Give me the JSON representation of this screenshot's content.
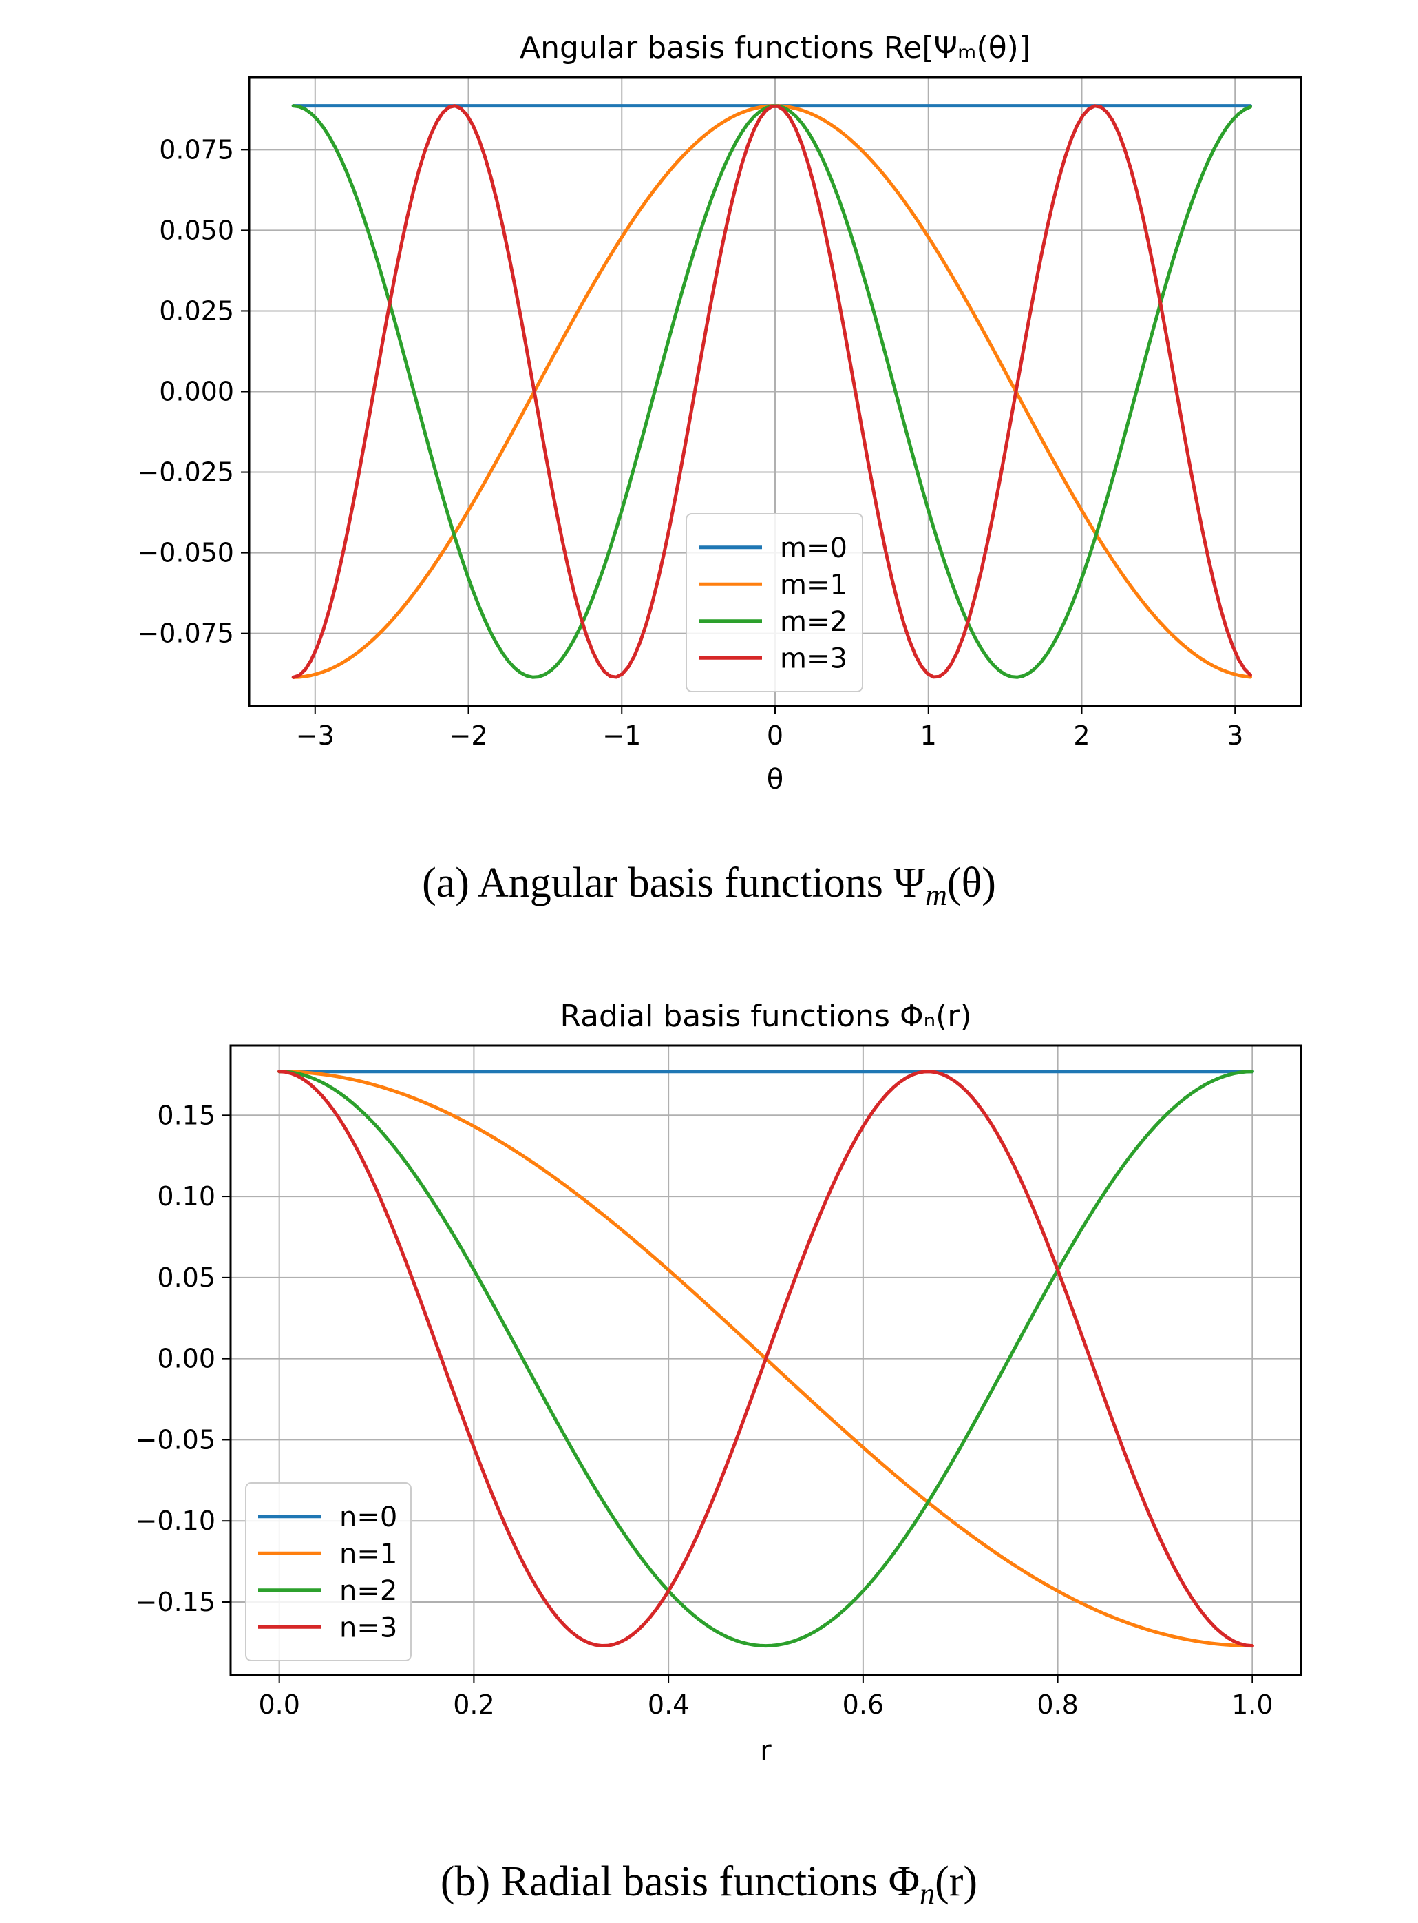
{
  "chart_data": [
    {
      "id": "angular",
      "type": "line",
      "title": "Angular basis functions  Re[Ψₘ(θ)]",
      "xlabel": "θ",
      "ylabel": "",
      "xlim": [
        -3.43,
        3.43
      ],
      "ylim": [
        -0.0975,
        0.0975
      ],
      "x_range": [
        -3.14159,
        3.1
      ],
      "xticks": [
        -3,
        -2,
        -1,
        0,
        1,
        2,
        3
      ],
      "xtick_labels": [
        "−3",
        "−2",
        "−1",
        "0",
        "1",
        "2",
        "3"
      ],
      "yticks": [
        0.075,
        0.05,
        0.025,
        0.0,
        -0.025,
        -0.05,
        -0.075
      ],
      "ytick_labels": [
        "0.075",
        "0.050",
        "0.025",
        "0.000",
        "−0.025",
        "−0.050",
        "−0.075"
      ],
      "grid": true,
      "legend_position": "lower-center",
      "amplitude": 0.0886,
      "function": "amplitude * cos(m * x)",
      "series": [
        {
          "name": "m=0",
          "param": 0,
          "color": "#1f77b4"
        },
        {
          "name": "m=1",
          "param": 1,
          "color": "#ff7f0e"
        },
        {
          "name": "m=2",
          "param": 2,
          "color": "#2ca02c"
        },
        {
          "name": "m=3",
          "param": 3,
          "color": "#d62728"
        }
      ]
    },
    {
      "id": "radial",
      "type": "line",
      "title": "Radial basis functions  Φₙ(r)",
      "xlabel": "r",
      "ylabel": "",
      "xlim": [
        -0.05,
        1.05
      ],
      "ylim": [
        -0.195,
        0.193
      ],
      "x_range": [
        0,
        1
      ],
      "xticks": [
        0.0,
        0.2,
        0.4,
        0.6,
        0.8,
        1.0
      ],
      "xtick_labels": [
        "0.0",
        "0.2",
        "0.4",
        "0.6",
        "0.8",
        "1.0"
      ],
      "yticks": [
        0.15,
        0.1,
        0.05,
        0.0,
        -0.05,
        -0.1,
        -0.15
      ],
      "ytick_labels": [
        "0.15",
        "0.10",
        "0.05",
        "0.00",
        "−0.05",
        "−0.10",
        "−0.15"
      ],
      "grid": true,
      "legend_position": "lower-left",
      "amplitude": 0.177,
      "function": "amplitude * cos(n * pi * x)",
      "series": [
        {
          "name": "n=0",
          "param": 0,
          "color": "#1f77b4"
        },
        {
          "name": "n=1",
          "param": 1,
          "color": "#ff7f0e"
        },
        {
          "name": "n=2",
          "param": 2,
          "color": "#2ca02c"
        },
        {
          "name": "n=3",
          "param": 3,
          "color": "#d62728"
        }
      ]
    }
  ],
  "captions": {
    "a": {
      "text": "(a) Angular basis functions ",
      "sym": "Ψ",
      "sub": "m",
      "arg": "(θ)"
    },
    "b": {
      "text": "(b) Radial basis functions ",
      "sym": "Φ",
      "sub": "n",
      "arg": "(r)"
    }
  }
}
